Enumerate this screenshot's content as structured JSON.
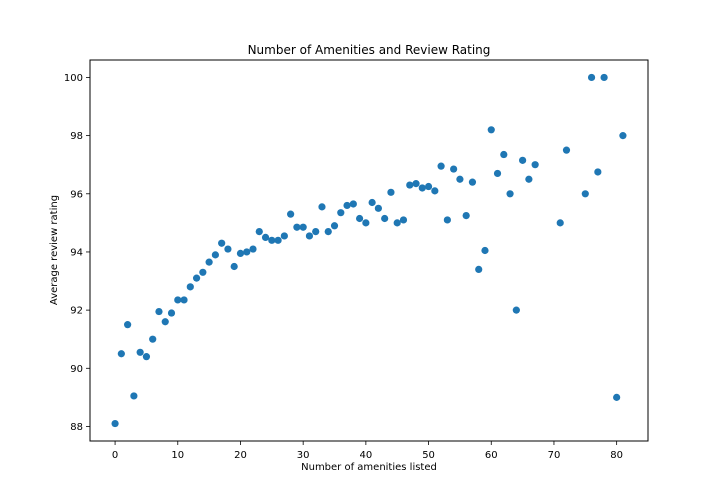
{
  "chart_data": {
    "type": "scatter",
    "title": "Number of Amenities and Review Rating",
    "xlabel": "Number of amenities listed",
    "ylabel": "Average review rating",
    "xlim": [
      -4,
      85
    ],
    "ylim": [
      87.5,
      100.6
    ],
    "xticks": [
      0,
      10,
      20,
      30,
      40,
      50,
      60,
      70,
      80
    ],
    "yticks": [
      88,
      90,
      92,
      94,
      96,
      98,
      100
    ],
    "grid": false,
    "marker_color": "#1f77b4",
    "points": [
      [
        0,
        88.1
      ],
      [
        1,
        90.5
      ],
      [
        2,
        91.5
      ],
      [
        3,
        89.05
      ],
      [
        4,
        90.55
      ],
      [
        5,
        90.4
      ],
      [
        6,
        91.0
      ],
      [
        7,
        91.95
      ],
      [
        8,
        91.6
      ],
      [
        9,
        91.9
      ],
      [
        10,
        92.35
      ],
      [
        11,
        92.35
      ],
      [
        12,
        92.8
      ],
      [
        13,
        93.1
      ],
      [
        14,
        93.3
      ],
      [
        15,
        93.65
      ],
      [
        16,
        93.9
      ],
      [
        17,
        94.3
      ],
      [
        18,
        94.1
      ],
      [
        19,
        93.5
      ],
      [
        20,
        93.95
      ],
      [
        21,
        94.0
      ],
      [
        22,
        94.1
      ],
      [
        23,
        94.7
      ],
      [
        24,
        94.5
      ],
      [
        25,
        94.4
      ],
      [
        26,
        94.4
      ],
      [
        27,
        94.55
      ],
      [
        28,
        95.3
      ],
      [
        29,
        94.85
      ],
      [
        30,
        94.85
      ],
      [
        31,
        94.55
      ],
      [
        32,
        94.7
      ],
      [
        33,
        95.55
      ],
      [
        34,
        94.7
      ],
      [
        35,
        94.9
      ],
      [
        36,
        95.35
      ],
      [
        37,
        95.6
      ],
      [
        38,
        95.65
      ],
      [
        39,
        95.15
      ],
      [
        40,
        95.0
      ],
      [
        41,
        95.7
      ],
      [
        42,
        95.5
      ],
      [
        43,
        95.15
      ],
      [
        44,
        96.05
      ],
      [
        45,
        95.0
      ],
      [
        46,
        95.1
      ],
      [
        47,
        96.3
      ],
      [
        48,
        96.35
      ],
      [
        49,
        96.2
      ],
      [
        50,
        96.25
      ],
      [
        51,
        96.1
      ],
      [
        52,
        96.95
      ],
      [
        53,
        95.1
      ],
      [
        54,
        96.85
      ],
      [
        55,
        96.5
      ],
      [
        56,
        95.25
      ],
      [
        57,
        96.4
      ],
      [
        58,
        93.4
      ],
      [
        59,
        94.05
      ],
      [
        60,
        98.2
      ],
      [
        61,
        96.7
      ],
      [
        62,
        97.35
      ],
      [
        63,
        96.0
      ],
      [
        64,
        92.0
      ],
      [
        65,
        97.15
      ],
      [
        66,
        96.5
      ],
      [
        67,
        97.0
      ],
      [
        71,
        95.0
      ],
      [
        72,
        97.5
      ],
      [
        75,
        96.0
      ],
      [
        76,
        100.0
      ],
      [
        77,
        96.75
      ],
      [
        78,
        100.0
      ],
      [
        80,
        89.0
      ],
      [
        81,
        98.0
      ]
    ]
  }
}
